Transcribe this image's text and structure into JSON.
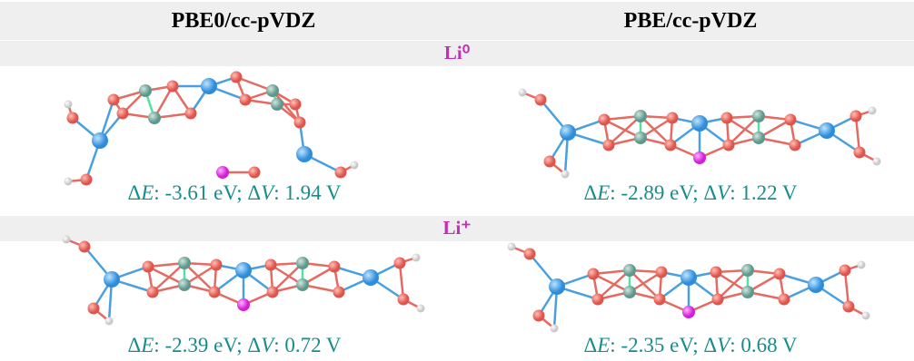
{
  "header": {
    "columns": [
      "PBE0/cc-pVDZ",
      "PBE/cc-pVDZ"
    ]
  },
  "sections": [
    {
      "label": "Li⁰",
      "cells": [
        {
          "caption": [
            "Δ",
            "E",
            ": -3.61 eV; Δ",
            "V",
            ": 1.94 V"
          ]
        },
        {
          "caption": [
            "Δ",
            "E",
            ": -2.89 eV; Δ",
            "V",
            ": 1.22 V"
          ]
        }
      ]
    },
    {
      "label": "Li⁺",
      "cells": [
        {
          "caption": [
            "Δ",
            "E",
            ": -2.39 eV; Δ",
            "V",
            ": 0.72 V"
          ]
        },
        {
          "caption": [
            "Δ",
            "E",
            ": -2.35 eV; Δ",
            "V",
            ": 0.68 V"
          ]
        }
      ]
    }
  ]
}
